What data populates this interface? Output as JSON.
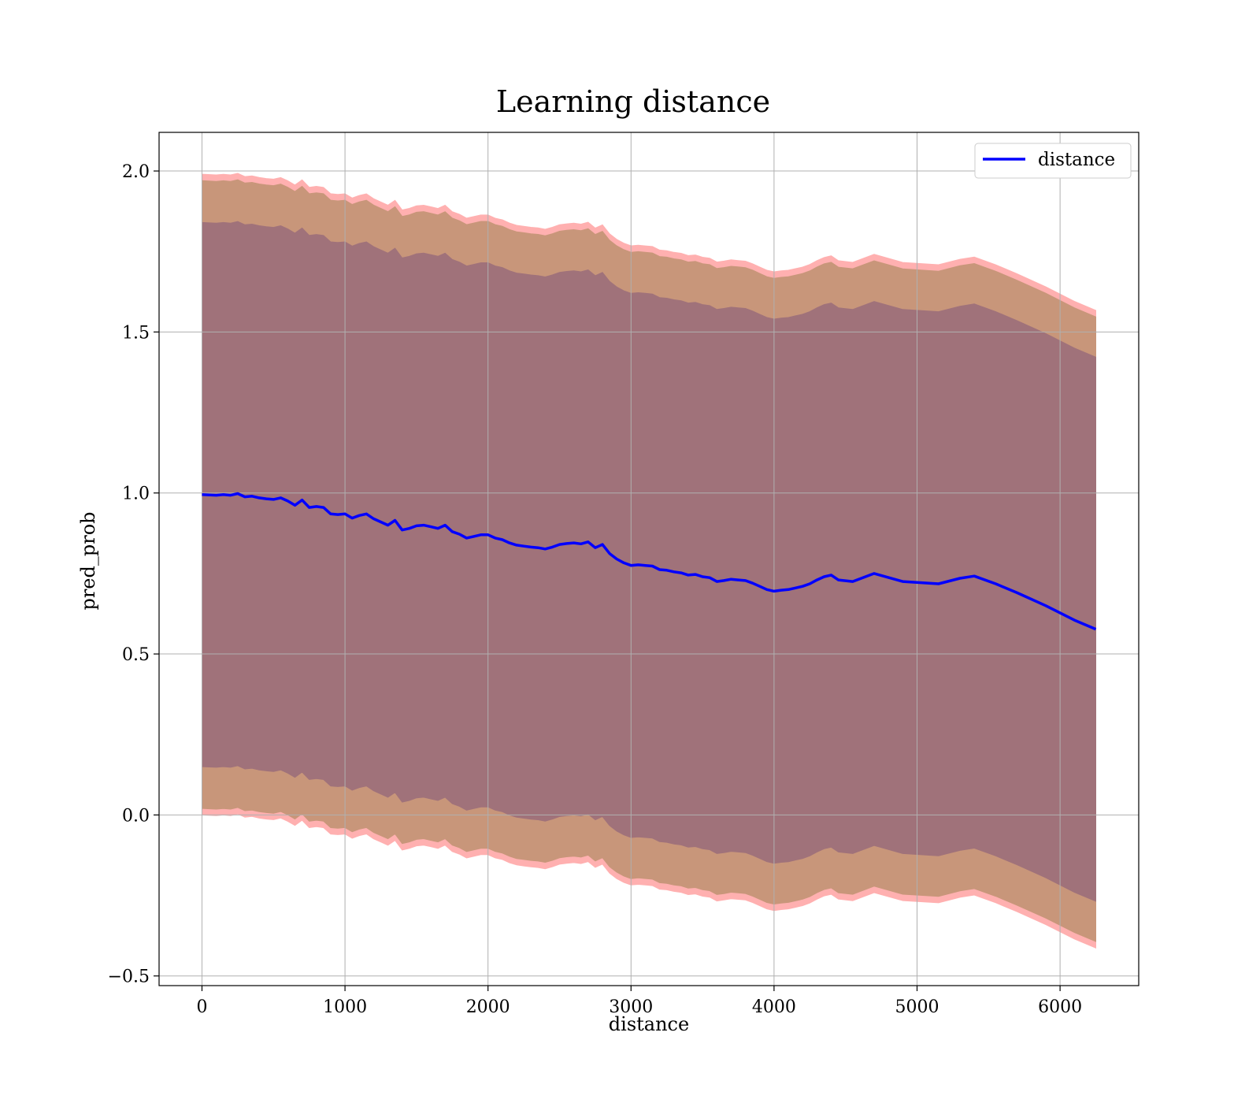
{
  "chart_data": {
    "type": "line",
    "title": "Learning distance",
    "xlabel": "distance",
    "ylabel": "pred_prob",
    "xlim": [
      -300,
      6550
    ],
    "ylim": [
      -0.53,
      2.12
    ],
    "xticks": [
      0,
      1000,
      2000,
      3000,
      4000,
      5000,
      6000
    ],
    "yticks": [
      -0.5,
      0.0,
      0.5,
      1.0,
      1.5,
      2.0
    ],
    "xtick_labels": [
      "0",
      "1000",
      "2000",
      "3000",
      "4000",
      "5000",
      "6000"
    ],
    "ytick_labels": [
      "−0.5",
      "0.0",
      "0.5",
      "1.0",
      "1.5",
      "2.0"
    ],
    "grid": true,
    "legend_position": "top-right",
    "legend": [
      "distance"
    ],
    "colors": {
      "line": "#0000ff",
      "band_outer": "#ffb0b0",
      "band_middle": "#c8967a",
      "band_inner": "#a0727a",
      "grid": "#b0b0b0"
    },
    "series": [
      {
        "name": "distance",
        "x": [
          0,
          100,
          150,
          200,
          250,
          300,
          350,
          400,
          450,
          500,
          550,
          600,
          650,
          700,
          750,
          800,
          850,
          900,
          950,
          1000,
          1050,
          1100,
          1150,
          1200,
          1250,
          1300,
          1350,
          1400,
          1450,
          1500,
          1550,
          1600,
          1650,
          1700,
          1750,
          1800,
          1850,
          1900,
          1950,
          2000,
          2050,
          2100,
          2150,
          2200,
          2250,
          2300,
          2350,
          2400,
          2450,
          2500,
          2550,
          2600,
          2650,
          2700,
          2750,
          2800,
          2850,
          2900,
          2950,
          3000,
          3050,
          3100,
          3150,
          3200,
          3250,
          3300,
          3350,
          3400,
          3450,
          3500,
          3550,
          3600,
          3650,
          3700,
          3750,
          3800,
          3850,
          3900,
          3950,
          4000,
          4050,
          4100,
          4150,
          4200,
          4250,
          4300,
          4350,
          4400,
          4450,
          4550,
          4700,
          4900,
          5150,
          5300,
          5400,
          5550,
          5700,
          5900,
          6100,
          6250
        ],
        "values": [
          0.995,
          0.993,
          0.995,
          0.993,
          0.998,
          0.988,
          0.99,
          0.985,
          0.982,
          0.98,
          0.985,
          0.975,
          0.962,
          0.978,
          0.955,
          0.958,
          0.955,
          0.935,
          0.933,
          0.935,
          0.922,
          0.93,
          0.935,
          0.92,
          0.91,
          0.9,
          0.915,
          0.885,
          0.89,
          0.898,
          0.9,
          0.895,
          0.89,
          0.9,
          0.88,
          0.872,
          0.86,
          0.865,
          0.87,
          0.87,
          0.86,
          0.855,
          0.845,
          0.838,
          0.835,
          0.832,
          0.83,
          0.826,
          0.832,
          0.84,
          0.843,
          0.845,
          0.842,
          0.848,
          0.83,
          0.84,
          0.812,
          0.795,
          0.783,
          0.775,
          0.777,
          0.775,
          0.773,
          0.762,
          0.76,
          0.755,
          0.752,
          0.745,
          0.747,
          0.74,
          0.737,
          0.725,
          0.728,
          0.732,
          0.73,
          0.728,
          0.72,
          0.71,
          0.7,
          0.695,
          0.698,
          0.7,
          0.705,
          0.71,
          0.718,
          0.73,
          0.74,
          0.745,
          0.73,
          0.725,
          0.75,
          0.725,
          0.718,
          0.735,
          0.742,
          0.718,
          0.69,
          0.65,
          0.605,
          0.577
        ]
      }
    ],
    "bands": [
      {
        "label": "outer",
        "half_width_start": 0.995,
        "half_width_end": 0.99
      },
      {
        "label": "middle",
        "half_width_start": 0.975,
        "half_width_end": 0.97
      },
      {
        "label": "inner",
        "half_width_start": 0.845,
        "half_width_end": 0.845
      }
    ]
  }
}
